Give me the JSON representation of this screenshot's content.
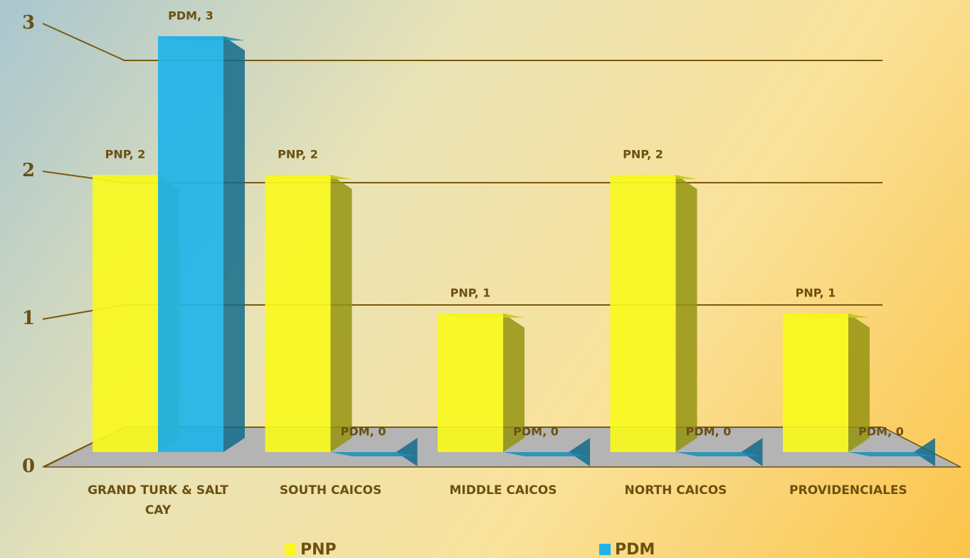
{
  "chart_data": {
    "type": "bar",
    "categories": [
      "GRAND TURK & SALT CAY",
      "SOUTH CAICOS",
      "MIDDLE CAICOS",
      "NORTH CAICOS",
      "PROVIDENCIALES"
    ],
    "series": [
      {
        "name": "PNP",
        "color": "#f8f81e",
        "values": [
          2,
          2,
          1,
          2,
          1
        ],
        "value_labels": [
          "PNP, 2",
          "PNP, 2",
          "PNP, 1",
          "PNP, 2",
          "PNP, 1"
        ]
      },
      {
        "name": "PDM",
        "color": "#1fb3e8",
        "values": [
          3,
          0,
          0,
          0,
          0
        ],
        "value_labels": [
          "PDM, 3",
          "PDM, 0",
          "PDM, 0",
          "PDM, 0",
          "PDM, 0"
        ]
      }
    ],
    "ylim": [
      0,
      3
    ],
    "yticks": [
      0,
      1,
      2,
      3
    ],
    "grid": true,
    "legend": "bottom"
  }
}
